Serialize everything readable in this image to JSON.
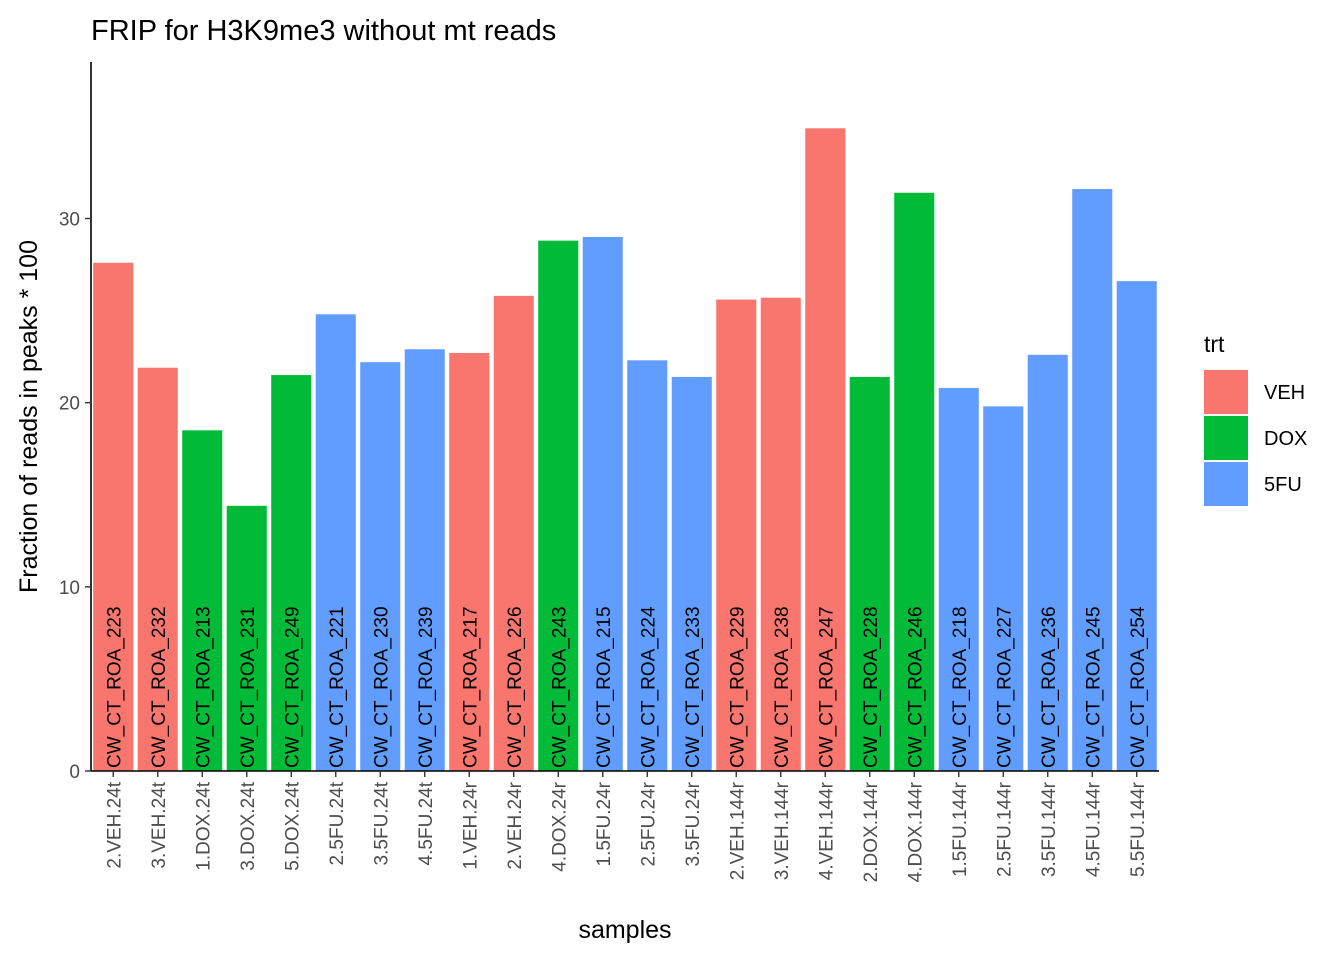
{
  "chart_data": {
    "type": "bar",
    "title": "FRIP for H3K9me3 without mt reads",
    "xlabel": "samples",
    "ylabel": "Fraction of reads in peaks * 100",
    "ylim": [
      0,
      38.5
    ],
    "yticks": [
      0,
      10,
      20,
      30
    ],
    "grid": false,
    "legend": {
      "title": "trt",
      "position": "right",
      "entries": [
        {
          "name": "VEH",
          "color": "#F8766D"
        },
        {
          "name": "DOX",
          "color": "#00BA38"
        },
        {
          "name": "5FU",
          "color": "#619CFF"
        }
      ]
    },
    "categories": [
      "2.VEH.24t",
      "3.VEH.24t",
      "1.DOX.24t",
      "3.DOX.24t",
      "5.DOX.24t",
      "2.5FU.24t",
      "3.5FU.24t",
      "4.5FU.24t",
      "1.VEH.24r",
      "2.VEH.24r",
      "4.DOX.24r",
      "1.5FU.24r",
      "2.5FU.24r",
      "3.5FU.24r",
      "2.VEH.144r",
      "3.VEH.144r",
      "4.VEH.144r",
      "2.DOX.144r",
      "4.DOX.144r",
      "1.5FU.144r",
      "2.5FU.144r",
      "3.5FU.144r",
      "4.5FU.144r",
      "5.5FU.144r"
    ],
    "values": [
      27.6,
      21.9,
      18.5,
      14.4,
      21.5,
      24.8,
      22.2,
      22.9,
      22.7,
      25.8,
      28.8,
      29.0,
      22.3,
      21.4,
      25.6,
      25.7,
      34.9,
      21.4,
      31.4,
      20.8,
      19.8,
      22.6,
      31.6,
      26.6
    ],
    "trt": [
      "VEH",
      "VEH",
      "DOX",
      "DOX",
      "DOX",
      "5FU",
      "5FU",
      "5FU",
      "VEH",
      "VEH",
      "DOX",
      "5FU",
      "5FU",
      "5FU",
      "VEH",
      "VEH",
      "VEH",
      "DOX",
      "DOX",
      "5FU",
      "5FU",
      "5FU",
      "5FU",
      "5FU"
    ],
    "bar_labels": [
      "CW_CT_ROA_223",
      "CW_CT_ROA_232",
      "CW_CT_ROA_213",
      "CW_CT_ROA_231",
      "CW_CT_ROA_249",
      "CW_CT_ROA_221",
      "CW_CT_ROA_230",
      "CW_CT_ROA_239",
      "CW_CT_ROA_217",
      "CW_CT_ROA_226",
      "CW_CT_ROA_243",
      "CW_CT_ROA_215",
      "CW_CT_ROA_224",
      "CW_CT_ROA_233",
      "CW_CT_ROA_229",
      "CW_CT_ROA_238",
      "CW_CT_ROA_247",
      "CW_CT_ROA_228",
      "CW_CT_ROA_246",
      "CW_CT_ROA_218",
      "CW_CT_ROA_227",
      "CW_CT_ROA_236",
      "CW_CT_ROA_245",
      "CW_CT_ROA_254"
    ]
  }
}
